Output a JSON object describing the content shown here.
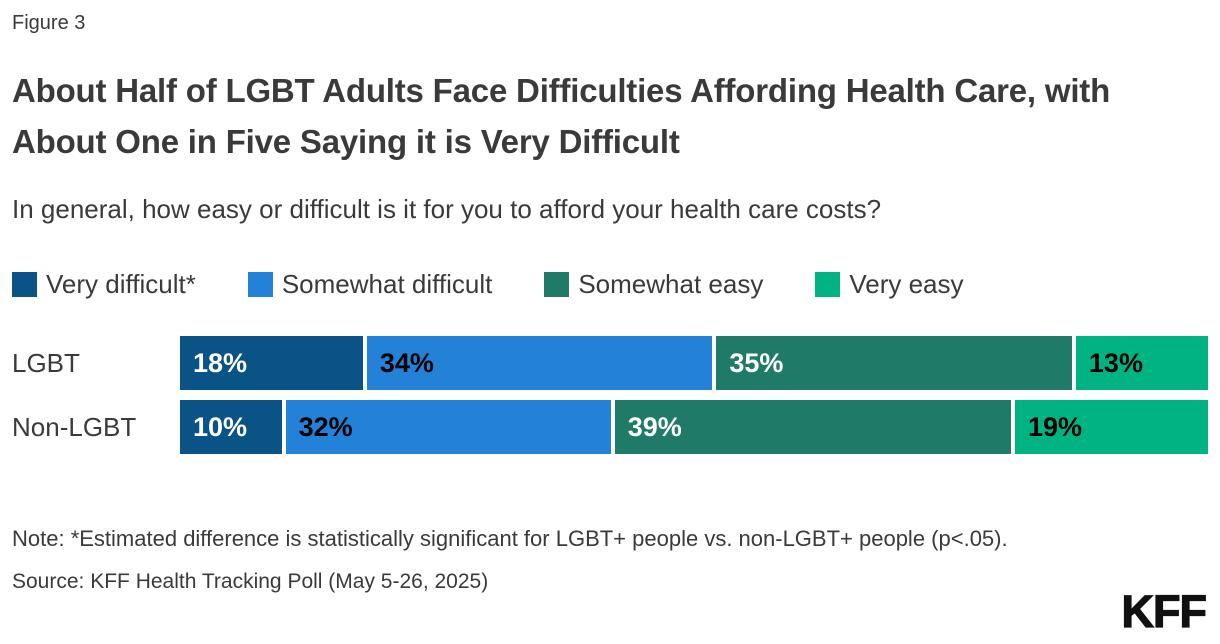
{
  "figure_label": "Figure 3",
  "title": "About Half of LGBT Adults Face Difficulties Affording Health Care, with About One in Five Saying it is Very Difficult",
  "subtitle": "In general, how easy or difficult is it for you to afford your health care costs?",
  "note": "Note: *Estimated difference is statistically significant for LGBT+ people vs. non-LGBT+ people (p<.05).",
  "source": "Source: KFF Health Tracking Poll (May 5-26, 2025)",
  "logo_text": "KFF",
  "colors": {
    "text": "#3a3a3a",
    "background": "#ffffff",
    "logo": "#111111"
  },
  "chart_data": {
    "type": "bar",
    "variant": "stacked-horizontal",
    "title": "About Half of LGBT Adults Face Difficulties Affording Health Care, with About One in Five Saying it is Very Difficult",
    "subtitle": "In general, how easy or difficult is it for you to afford your health care costs?",
    "categories": [
      "LGBT",
      "Non-LGBT"
    ],
    "series": [
      {
        "name": "Very difficult*",
        "values": [
          18,
          10
        ],
        "color": "#0a5387",
        "value_label_color": "#ffffff"
      },
      {
        "name": "Somewhat difficult",
        "values": [
          34,
          32
        ],
        "color": "#2381d8",
        "value_label_color": "#000000"
      },
      {
        "name": "Somewhat easy",
        "values": [
          35,
          39
        ],
        "color": "#1f7a68",
        "value_label_color": "#ffffff"
      },
      {
        "name": "Very easy",
        "values": [
          13,
          19
        ],
        "color": "#00b383",
        "value_label_color": "#000000"
      }
    ],
    "value_suffix": "%",
    "xlim": [
      0,
      100
    ],
    "legend_position": "top",
    "grid": false
  }
}
